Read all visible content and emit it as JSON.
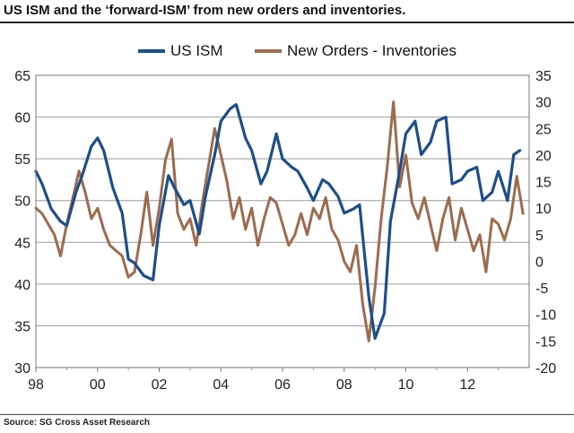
{
  "title": "US ISM and the ‘forward-ISM’ from new orders and inventories.",
  "source": "Source: SG Cross Asset Research",
  "chart_data": {
    "type": "line",
    "x_tick_labels": [
      "98",
      "00",
      "02",
      "04",
      "06",
      "08",
      "10",
      "12"
    ],
    "x_tick_years": [
      1998,
      2000,
      2002,
      2004,
      2006,
      2008,
      2010,
      2012
    ],
    "xlim": [
      1998,
      2014
    ],
    "left_axis": {
      "ylim": [
        30,
        65
      ],
      "ticks": [
        30,
        35,
        40,
        45,
        50,
        55,
        60,
        65
      ]
    },
    "right_axis": {
      "ylim": [
        -20,
        35
      ],
      "ticks": [
        -20,
        -15,
        -10,
        -5,
        0,
        5,
        10,
        15,
        20,
        25,
        30,
        35
      ]
    },
    "grid": "horizontal",
    "legend_position": "top",
    "series": [
      {
        "name": "US ISM",
        "axis": "left",
        "color": "#1d4e89",
        "x": [
          1998.0,
          1998.2,
          1998.5,
          1998.8,
          1999.0,
          1999.3,
          1999.5,
          1999.8,
          2000.0,
          2000.2,
          2000.5,
          2000.8,
          2001.0,
          2001.2,
          2001.5,
          2001.8,
          2002.0,
          2002.3,
          2002.5,
          2002.8,
          2003.0,
          2003.3,
          2003.5,
          2003.8,
          2004.0,
          2004.3,
          2004.5,
          2004.8,
          2005.0,
          2005.3,
          2005.5,
          2005.8,
          2006.0,
          2006.3,
          2006.5,
          2006.8,
          2007.0,
          2007.3,
          2007.5,
          2007.8,
          2008.0,
          2008.3,
          2008.5,
          2008.8,
          2009.0,
          2009.3,
          2009.5,
          2009.8,
          2010.0,
          2010.3,
          2010.5,
          2010.8,
          2011.0,
          2011.3,
          2011.5,
          2011.8,
          2012.0,
          2012.3,
          2012.5,
          2012.8,
          2013.0,
          2013.3,
          2013.5,
          2013.7
        ],
        "values": [
          53.5,
          52.0,
          49.0,
          47.5,
          47.0,
          51.0,
          53.0,
          56.5,
          57.5,
          56.0,
          51.5,
          48.5,
          43.0,
          42.5,
          41.0,
          40.5,
          47.0,
          53.0,
          51.5,
          49.5,
          50.0,
          46.0,
          50.5,
          55.5,
          59.5,
          61.0,
          61.5,
          57.5,
          56.0,
          52.0,
          53.5,
          58.0,
          55.0,
          54.0,
          53.5,
          51.5,
          50.0,
          52.5,
          52.0,
          50.5,
          48.5,
          49.0,
          49.5,
          38.5,
          33.5,
          36.5,
          47.5,
          53.5,
          58.0,
          59.5,
          55.5,
          57.0,
          59.5,
          60.0,
          52.0,
          52.5,
          53.5,
          54.0,
          50.0,
          51.0,
          53.5,
          50.0,
          55.5,
          56.0
        ]
      },
      {
        "name": "New Orders - Inventories",
        "axis": "right",
        "color": "#9c6b4e",
        "x": [
          1998.0,
          1998.2,
          1998.4,
          1998.6,
          1998.8,
          1999.0,
          1999.2,
          1999.4,
          1999.6,
          1999.8,
          2000.0,
          2000.2,
          2000.4,
          2000.6,
          2000.8,
          2001.0,
          2001.2,
          2001.4,
          2001.6,
          2001.8,
          2002.0,
          2002.2,
          2002.4,
          2002.6,
          2002.8,
          2003.0,
          2003.2,
          2003.4,
          2003.6,
          2003.8,
          2004.0,
          2004.2,
          2004.4,
          2004.6,
          2004.8,
          2005.0,
          2005.2,
          2005.4,
          2005.6,
          2005.8,
          2006.0,
          2006.2,
          2006.4,
          2006.6,
          2006.8,
          2007.0,
          2007.2,
          2007.4,
          2007.6,
          2007.8,
          2008.0,
          2008.2,
          2008.4,
          2008.6,
          2008.8,
          2009.0,
          2009.2,
          2009.4,
          2009.6,
          2009.8,
          2010.0,
          2010.2,
          2010.4,
          2010.6,
          2010.8,
          2011.0,
          2011.2,
          2011.4,
          2011.6,
          2011.8,
          2012.0,
          2012.2,
          2012.4,
          2012.6,
          2012.8,
          2013.0,
          2013.2,
          2013.4,
          2013.6,
          2013.8
        ],
        "values": [
          10.0,
          9.0,
          7.0,
          5.0,
          1.0,
          7.0,
          12.0,
          17.0,
          13.0,
          8.0,
          10.0,
          6.0,
          3.0,
          2.0,
          1.0,
          -3.0,
          -2.0,
          5.0,
          13.0,
          3.0,
          10.0,
          19.0,
          23.0,
          9.0,
          6.0,
          8.0,
          3.0,
          11.0,
          18.0,
          25.0,
          20.0,
          15.0,
          8.0,
          12.0,
          6.0,
          10.0,
          3.0,
          8.0,
          12.0,
          11.0,
          7.0,
          3.0,
          5.0,
          9.0,
          5.0,
          10.0,
          8.0,
          12.0,
          6.0,
          4.0,
          0.0,
          -2.0,
          3.0,
          -8.0,
          -15.0,
          -5.0,
          8.0,
          18.0,
          30.0,
          14.0,
          20.0,
          11.0,
          8.0,
          12.0,
          7.0,
          2.0,
          8.0,
          12.0,
          4.0,
          10.0,
          6.0,
          2.0,
          5.0,
          -2.0,
          8.0,
          7.0,
          4.0,
          8.0,
          16.0,
          9.0
        ]
      }
    ]
  }
}
